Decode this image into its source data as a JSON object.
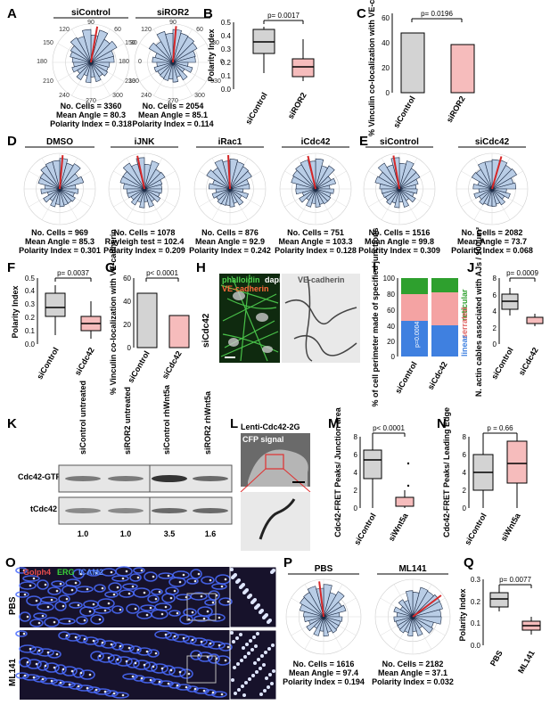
{
  "panels": {
    "A": {
      "label": "A",
      "roses": [
        {
          "title": "siControl",
          "angles": {
            "a90": "90",
            "a60": "60",
            "a30": "30",
            "a0": "0",
            "a330": "330",
            "a300": "300",
            "a270": "270",
            "a240": "240",
            "a210": "210",
            "a180": "180",
            "a150": "150",
            "a120": "120"
          },
          "stats": [
            "No. Cells = 3360",
            "Mean Angle = 80.3",
            "Polarity Index = 0.318"
          ]
        },
        {
          "title": "siROR2",
          "angles": {
            "a90": "90",
            "a60": "60",
            "a30": "30",
            "a0": "0",
            "a330": "330",
            "a300": "300",
            "a270": "270",
            "a240": "240",
            "a210": "210",
            "a180": "180",
            "a150": "150",
            "a120": "120"
          },
          "stats": [
            "No. Cells = 2054",
            "Mean Angle = 85.1",
            "Polarity Index = 0.114"
          ]
        }
      ]
    },
    "B": {
      "label": "B",
      "ylabel": "Polarity Index",
      "p": "p= 0.0017",
      "ticks": [
        "0.0",
        "0.1",
        "0.2",
        "0.3",
        "0.4",
        "0.5"
      ],
      "cats": [
        "siControl",
        "siROR2"
      ]
    },
    "C": {
      "label": "C",
      "ylabel": "% Vinculin co-localization with VE-cadherin",
      "p": "p= 0.0196",
      "ticks": [
        "0",
        "20",
        "40",
        "60"
      ],
      "cats": [
        "siControl",
        "siROR2"
      ]
    },
    "D": {
      "label": "D",
      "roses": [
        {
          "title": "DMSO",
          "stats": [
            "No. Cells = 969",
            "Mean Angle = 85.3",
            "Polarity Index = 0.301"
          ]
        },
        {
          "title": "iJNK",
          "stats": [
            "No. Cells = 1078",
            "Rayleigh test = 102.4",
            "Polarity Index = 0.209"
          ]
        },
        {
          "title": "iRac1",
          "stats": [
            "No. Cells = 876",
            "Mean Angle = 92.9",
            "Polarity Index = 0.242"
          ]
        },
        {
          "title": "iCdc42",
          "stats": [
            "No. Cells = 751",
            "Mean Angle = 103.3",
            "Polarity Index = 0.128"
          ]
        }
      ]
    },
    "E": {
      "label": "E",
      "roses": [
        {
          "title": "siControl",
          "stats": [
            "No. Cells = 1516",
            "Mean Angle = 99.8",
            "Polarity Index = 0.309"
          ]
        },
        {
          "title": "siCdc42",
          "stats": [
            "No. Cells = 2082",
            "Mean Angle = 73.7",
            "Polarity Index = 0.068"
          ]
        }
      ]
    },
    "F": {
      "label": "F",
      "ylabel": "Polarity Index",
      "p": "p= 0.0037",
      "ticks": [
        "0.0",
        "0.1",
        "0.2",
        "0.3",
        "0.4",
        "0.5"
      ],
      "cats": [
        "siControl",
        "siCdc42"
      ]
    },
    "G": {
      "label": "G",
      "ylabel": "% Vinculin co-localization with VE-cadherin",
      "p": "p< 0.0001",
      "ticks": [
        "0",
        "20",
        "40",
        "60"
      ],
      "cats": [
        "siControl",
        "siCdc42"
      ]
    },
    "H": {
      "label": "H",
      "side": "siCdc42",
      "stain1": "phalloidin",
      "stain2": "dapi",
      "stain3": "VE-cadherin",
      "stain4": "VE-cadherin"
    },
    "I": {
      "label": "I",
      "ylabel": "% of cell perimeter made of specified junctions",
      "ticks": [
        "0",
        "20",
        "40",
        "60",
        "80",
        "100"
      ],
      "cats": [
        "siControl",
        "siCdc42"
      ],
      "legend": [
        "reticular",
        "serrated",
        "linear"
      ],
      "pvals": [
        "p=0.0004",
        "p=0.0015",
        "p=0.0004"
      ]
    },
    "J": {
      "label": "J",
      "ylabel": "N. actin cables associated with AJs / 100μm²",
      "p": "p= 0.0009",
      "ticks": [
        "0",
        "2",
        "4",
        "6",
        "8"
      ],
      "cats": [
        "siControl",
        "siCdc42"
      ]
    },
    "K": {
      "label": "K",
      "cols": [
        "siControl untreated",
        "siROR2 untreated",
        "siControl rhWnt5a",
        "siROR2 rhWnt5a"
      ],
      "rows": [
        "Cdc42-GTP",
        "tCdc42"
      ],
      "quant": [
        "1.0",
        "1.0",
        "3.5",
        "1.6"
      ]
    },
    "L": {
      "label": "L",
      "title": "Lenti-Cdc42-2G",
      "sub": "CFP signal"
    },
    "M": {
      "label": "M",
      "ylabel": "Cdc42-FRET Peaks/ Junction area",
      "p": "p< 0.0001",
      "ticks": [
        "0",
        "2",
        "4",
        "6",
        "8"
      ],
      "cats": [
        "siControl",
        "siWnt5a"
      ]
    },
    "N": {
      "label": "N",
      "ylabel": "Cdc42-FRET Peaks/ Leading Edge",
      "p": "p = 0.66",
      "ticks": [
        "0",
        "2",
        "4",
        "6",
        "8"
      ],
      "cats": [
        "siControl",
        "siWnt5a"
      ]
    },
    "O": {
      "label": "O",
      "stain1": "Golph4",
      "stain2": "ERG",
      "stain3": "ICAM2",
      "rows": [
        "PBS",
        "ML141"
      ]
    },
    "P": {
      "label": "P",
      "roses": [
        {
          "title": "PBS",
          "stats": [
            "No. Cells = 1616",
            "Mean Angle = 97.4",
            "Polarity Index = 0.194"
          ]
        },
        {
          "title": "ML141",
          "stats": [
            "No. Cells = 2182",
            "Mean Angle = 37.1",
            "Polarity Index = 0.032"
          ]
        }
      ]
    },
    "Q": {
      "label": "Q",
      "ylabel": "Polarity Index",
      "p": "p= 0.0077",
      "ticks": [
        "0.0",
        "0.1",
        "0.2",
        "0.3"
      ],
      "cats": [
        "PBS",
        "ML141"
      ]
    }
  },
  "colors": {
    "rose": "#b9cde6",
    "roseStroke": "#1b2a44",
    "mean": "#d62728",
    "grey": "#d3d3d3",
    "pink": "#f6bcbc",
    "linear": "#3f80e0",
    "serrated": "#f4a3a3",
    "reticular": "#2ea02e"
  }
}
